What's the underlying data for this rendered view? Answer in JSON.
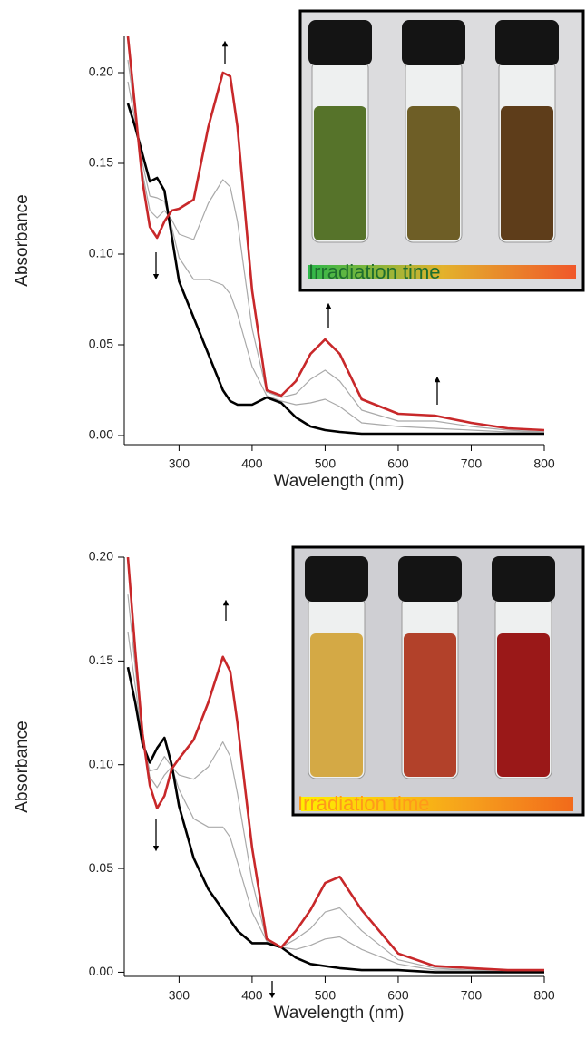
{
  "chart_data": [
    {
      "type": "line",
      "x_label": "Wavelength (nm)",
      "y_label": "Absorbance",
      "x": [
        230,
        240,
        250,
        260,
        270,
        280,
        290,
        300,
        320,
        340,
        360,
        370,
        380,
        400,
        420,
        440,
        460,
        480,
        500,
        520,
        550,
        600,
        650,
        700,
        750,
        800
      ],
      "xlim": [
        225,
        800
      ],
      "xticks": [
        300,
        400,
        500,
        600,
        700,
        800
      ],
      "ylim": [
        -0.005,
        0.22
      ],
      "yticks": [
        {
          "value": 0,
          "label": "0.00"
        },
        {
          "value": 0.05,
          "label": "0.05"
        },
        {
          "value": 0.1,
          "label": "0.10"
        },
        {
          "value": 0.15,
          "label": "0.15"
        },
        {
          "value": 0.2,
          "label": "0.20"
        }
      ],
      "annotation": "Irradiation time",
      "series": [
        {
          "color": "#a9a9a9",
          "values": [
            0.195,
            0.173,
            0.15,
            0.132,
            0.131,
            0.129,
            0.115,
            0.098,
            0.086,
            0.086,
            0.083,
            0.078,
            0.067,
            0.038,
            0.022,
            0.019,
            0.017,
            0.018,
            0.02,
            0.016,
            0.007,
            0.005,
            0.004,
            0.003,
            0.002,
            0.002
          ]
        },
        {
          "color": "#a9a9a9",
          "values": [
            0.207,
            0.177,
            0.145,
            0.124,
            0.12,
            0.124,
            0.119,
            0.111,
            0.108,
            0.128,
            0.141,
            0.137,
            0.118,
            0.059,
            0.024,
            0.021,
            0.023,
            0.031,
            0.036,
            0.03,
            0.014,
            0.008,
            0.008,
            0.005,
            0.003,
            0.002
          ]
        },
        {
          "color": "#000000",
          "values": [
            0.183,
            0.17,
            0.155,
            0.14,
            0.142,
            0.135,
            0.11,
            0.085,
            0.065,
            0.045,
            0.025,
            0.019,
            0.017,
            0.017,
            0.021,
            0.018,
            0.01,
            0.005,
            0.003,
            0.002,
            0.001,
            0.001,
            0.001,
            0.001,
            0.001,
            0.001
          ]
        },
        {
          "color": "#c8282a",
          "values": [
            0.22,
            0.18,
            0.14,
            0.115,
            0.109,
            0.118,
            0.124,
            0.125,
            0.13,
            0.17,
            0.2,
            0.198,
            0.17,
            0.08,
            0.025,
            0.022,
            0.03,
            0.045,
            0.053,
            0.045,
            0.02,
            0.012,
            0.011,
            0.007,
            0.004,
            0.003
          ]
        }
      ]
    },
    {
      "type": "line",
      "x_label": "Wavelength (nm)",
      "y_label": "Absorbance",
      "x": [
        230,
        240,
        250,
        260,
        270,
        280,
        290,
        300,
        320,
        340,
        360,
        370,
        380,
        400,
        420,
        440,
        460,
        480,
        500,
        520,
        550,
        600,
        650,
        700,
        750,
        800
      ],
      "xlim": [
        225,
        800
      ],
      "xticks": [
        300,
        400,
        500,
        600,
        700,
        800
      ],
      "ylim": [
        -0.002,
        0.2
      ],
      "yticks": [
        {
          "value": 0,
          "label": "0.00"
        },
        {
          "value": 0.05,
          "label": "0.05"
        },
        {
          "value": 0.1,
          "label": "0.10"
        },
        {
          "value": 0.15,
          "label": "0.15"
        },
        {
          "value": 0.2,
          "label": "0.20"
        }
      ],
      "annotation": "Irradiation time",
      "series": [
        {
          "color": "#a9a9a9",
          "values": [
            0.164,
            0.138,
            0.112,
            0.097,
            0.098,
            0.104,
            0.099,
            0.088,
            0.074,
            0.07,
            0.07,
            0.065,
            0.053,
            0.029,
            0.015,
            0.012,
            0.011,
            0.013,
            0.016,
            0.017,
            0.011,
            0.004,
            0.001,
            0.001,
            0,
            0
          ]
        },
        {
          "color": "#a9a9a9",
          "values": [
            0.182,
            0.147,
            0.113,
            0.094,
            0.089,
            0.095,
            0.099,
            0.095,
            0.093,
            0.099,
            0.111,
            0.104,
            0.086,
            0.044,
            0.015,
            0.012,
            0.016,
            0.021,
            0.029,
            0.031,
            0.02,
            0.006,
            0.002,
            0.001,
            0.001,
            0.001
          ]
        },
        {
          "color": "#000000",
          "values": [
            0.147,
            0.13,
            0.11,
            0.101,
            0.108,
            0.113,
            0.1,
            0.08,
            0.055,
            0.04,
            0.03,
            0.025,
            0.02,
            0.014,
            0.014,
            0.012,
            0.007,
            0.004,
            0.003,
            0.002,
            0.001,
            0.001,
            0,
            0,
            0,
            0
          ]
        },
        {
          "color": "#c8282a",
          "values": [
            0.2,
            0.155,
            0.115,
            0.09,
            0.079,
            0.085,
            0.098,
            0.103,
            0.112,
            0.13,
            0.152,
            0.145,
            0.12,
            0.06,
            0.016,
            0.012,
            0.02,
            0.03,
            0.043,
            0.046,
            0.03,
            0.009,
            0.003,
            0.002,
            0.001,
            0.001
          ]
        }
      ]
    }
  ]
}
